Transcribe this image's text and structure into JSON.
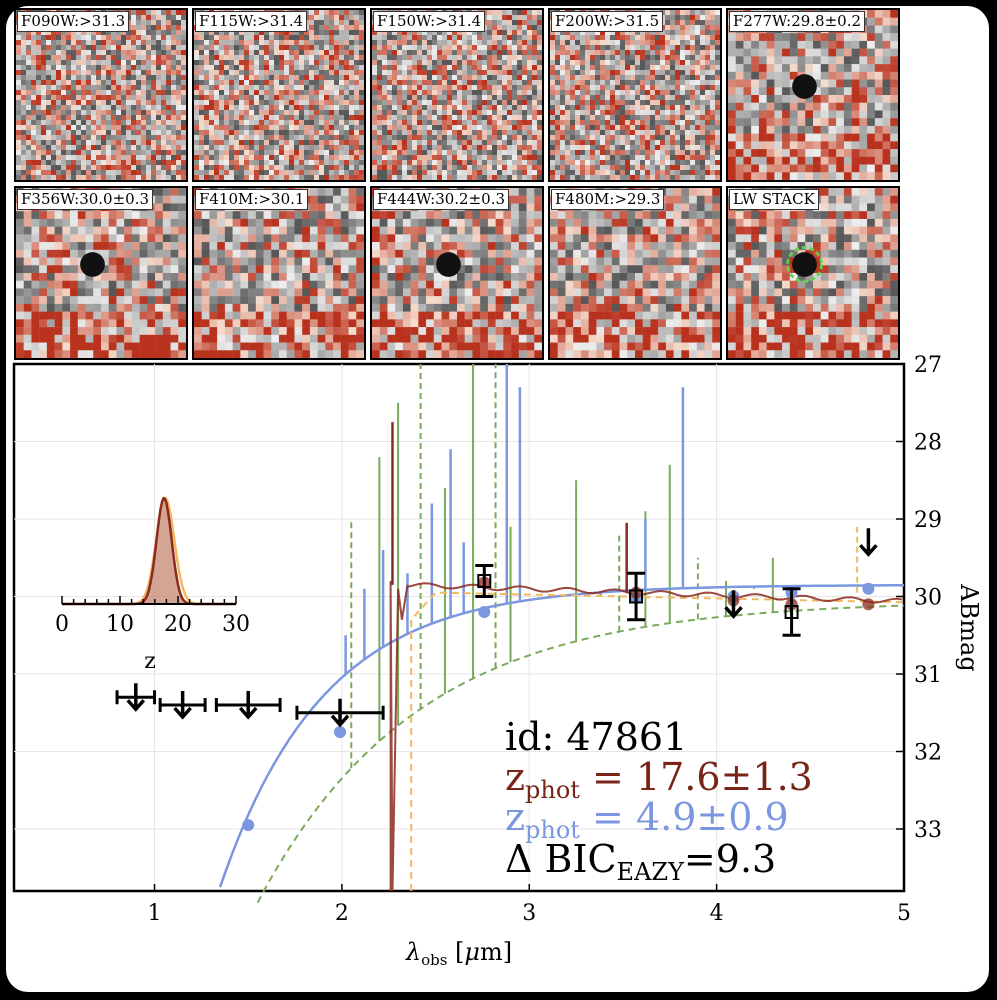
{
  "cutouts": [
    {
      "label": "F090W:>31.3"
    },
    {
      "label": "F115W:>31.4"
    },
    {
      "label": "F150W:>31.4"
    },
    {
      "label": "F200W:>31.5"
    },
    {
      "label": "F277W:29.8±0.2"
    },
    {
      "label": "F356W:30.0±0.3"
    },
    {
      "label": "F410M:>30.1"
    },
    {
      "label": "F444W:30.2±0.3"
    },
    {
      "label": "F480M:>29.3"
    },
    {
      "label": "LW STACK"
    }
  ],
  "annotations": {
    "id_text": "id: 47861",
    "z_label": "z",
    "zphot_main": "z",
    "zphot_sub": "phot",
    "zphot_red_value": " = 17.6±1.3",
    "zphot_blue_value": " = 4.9±0.9",
    "bic_prefix": "Δ BIC",
    "bic_sub": "EAZY",
    "bic_value": "=9.3"
  },
  "colors": {
    "red_model": "#8b2a1e",
    "blue_model": "#7b97e0",
    "green_model": "#7aaa5c",
    "orange_model": "#f0b860",
    "pz_fill": "#c98f78",
    "circle": "#5ad64a"
  },
  "chart_data": {
    "type": "scatter",
    "xlabel": "λobs [μm]",
    "ylabel": "ABmag",
    "xlim": [
      0.25,
      5.0
    ],
    "ylim": [
      33.8,
      27.0
    ],
    "xticks": [
      1,
      2,
      3,
      4,
      5
    ],
    "yticks": [
      27,
      28,
      29,
      30,
      31,
      32,
      33
    ],
    "photometry": [
      {
        "band": "F090W",
        "x": 0.9,
        "xerr": 0.1,
        "y": 31.3,
        "type": "upper"
      },
      {
        "band": "F115W",
        "x": 1.15,
        "xerr": 0.12,
        "y": 31.4,
        "type": "upper"
      },
      {
        "band": "F150W",
        "x": 1.5,
        "xerr": 0.17,
        "y": 31.4,
        "type": "upper"
      },
      {
        "band": "F200W",
        "x": 1.99,
        "xerr": 0.23,
        "y": 31.5,
        "type": "upper"
      },
      {
        "band": "F277W",
        "x": 2.76,
        "y": 29.8,
        "yerr": 0.2,
        "type": "detection"
      },
      {
        "band": "F356W",
        "x": 3.57,
        "y": 30.0,
        "yerr": 0.3,
        "type": "detection"
      },
      {
        "band": "F410M",
        "x": 4.09,
        "y": 30.1,
        "type": "upper"
      },
      {
        "band": "F444W",
        "x": 4.4,
        "y": 30.2,
        "yerr": 0.3,
        "type": "detection"
      },
      {
        "band": "F480M",
        "x": 4.81,
        "y": 29.3,
        "type": "upper"
      }
    ],
    "model_photometry": {
      "blue": [
        {
          "x": 1.5,
          "y": 32.95
        },
        {
          "x": 1.99,
          "y": 31.75
        },
        {
          "x": 2.76,
          "y": 30.2
        },
        {
          "x": 3.57,
          "y": 30.02
        },
        {
          "x": 4.09,
          "y": 30.0
        },
        {
          "x": 4.4,
          "y": 29.95
        },
        {
          "x": 4.81,
          "y": 29.9
        }
      ],
      "red": [
        {
          "x": 2.76,
          "y": 29.82
        },
        {
          "x": 3.57,
          "y": 29.95
        },
        {
          "x": 4.09,
          "y": 30.05
        },
        {
          "x": 4.4,
          "y": 30.1
        },
        {
          "x": 4.81,
          "y": 30.1
        }
      ]
    },
    "pz_inset": {
      "xlabel": "z",
      "xlim": [
        0,
        30
      ],
      "xticks": [
        0,
        10,
        20,
        30
      ],
      "peak": 17.6,
      "sigma": 1.3
    }
  }
}
